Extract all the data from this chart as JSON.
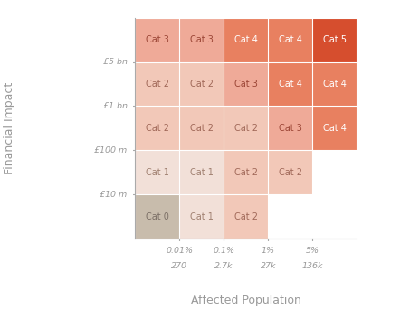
{
  "title_x": "Affected Population",
  "title_y": "Financial Impact",
  "col_labels_line1": [
    "0.01%",
    "0.1%",
    "1%",
    "5%"
  ],
  "col_labels_line2": [
    "270",
    "2.7k",
    "27k",
    "136k"
  ],
  "row_labels": [
    "£5 bn",
    "£1 bn",
    "£100 m",
    "£10 m"
  ],
  "grid": [
    [
      "Cat 3",
      "Cat 3",
      "Cat 4",
      "Cat 4",
      "Cat 5"
    ],
    [
      "Cat 2",
      "Cat 2",
      "Cat 3",
      "Cat 4",
      "Cat 4"
    ],
    [
      "Cat 2",
      "Cat 2",
      "Cat 2",
      "Cat 3",
      "Cat 4"
    ],
    [
      "Cat 1",
      "Cat 1",
      "Cat 2",
      "Cat 2",
      null
    ],
    [
      "Cat 0",
      "Cat 1",
      "Cat 2",
      null,
      null
    ]
  ],
  "cell_colors": {
    "Cat 0": "#c8bcac",
    "Cat 1": "#f2e0d8",
    "Cat 2": "#f2c8b8",
    "Cat 3": "#efaa98",
    "Cat 4": "#e88060",
    "Cat 5": "#d64e2e"
  },
  "text_colors": {
    "Cat 0": "#7a6e65",
    "Cat 1": "#a08070",
    "Cat 2": "#a06858",
    "Cat 3": "#9b4535",
    "Cat 4": "#ffffff",
    "Cat 5": "#ffffff"
  },
  "background_color": "#ffffff",
  "axis_color": "#aaaaaa",
  "label_color": "#999999",
  "grid_line_color": "#ffffff"
}
